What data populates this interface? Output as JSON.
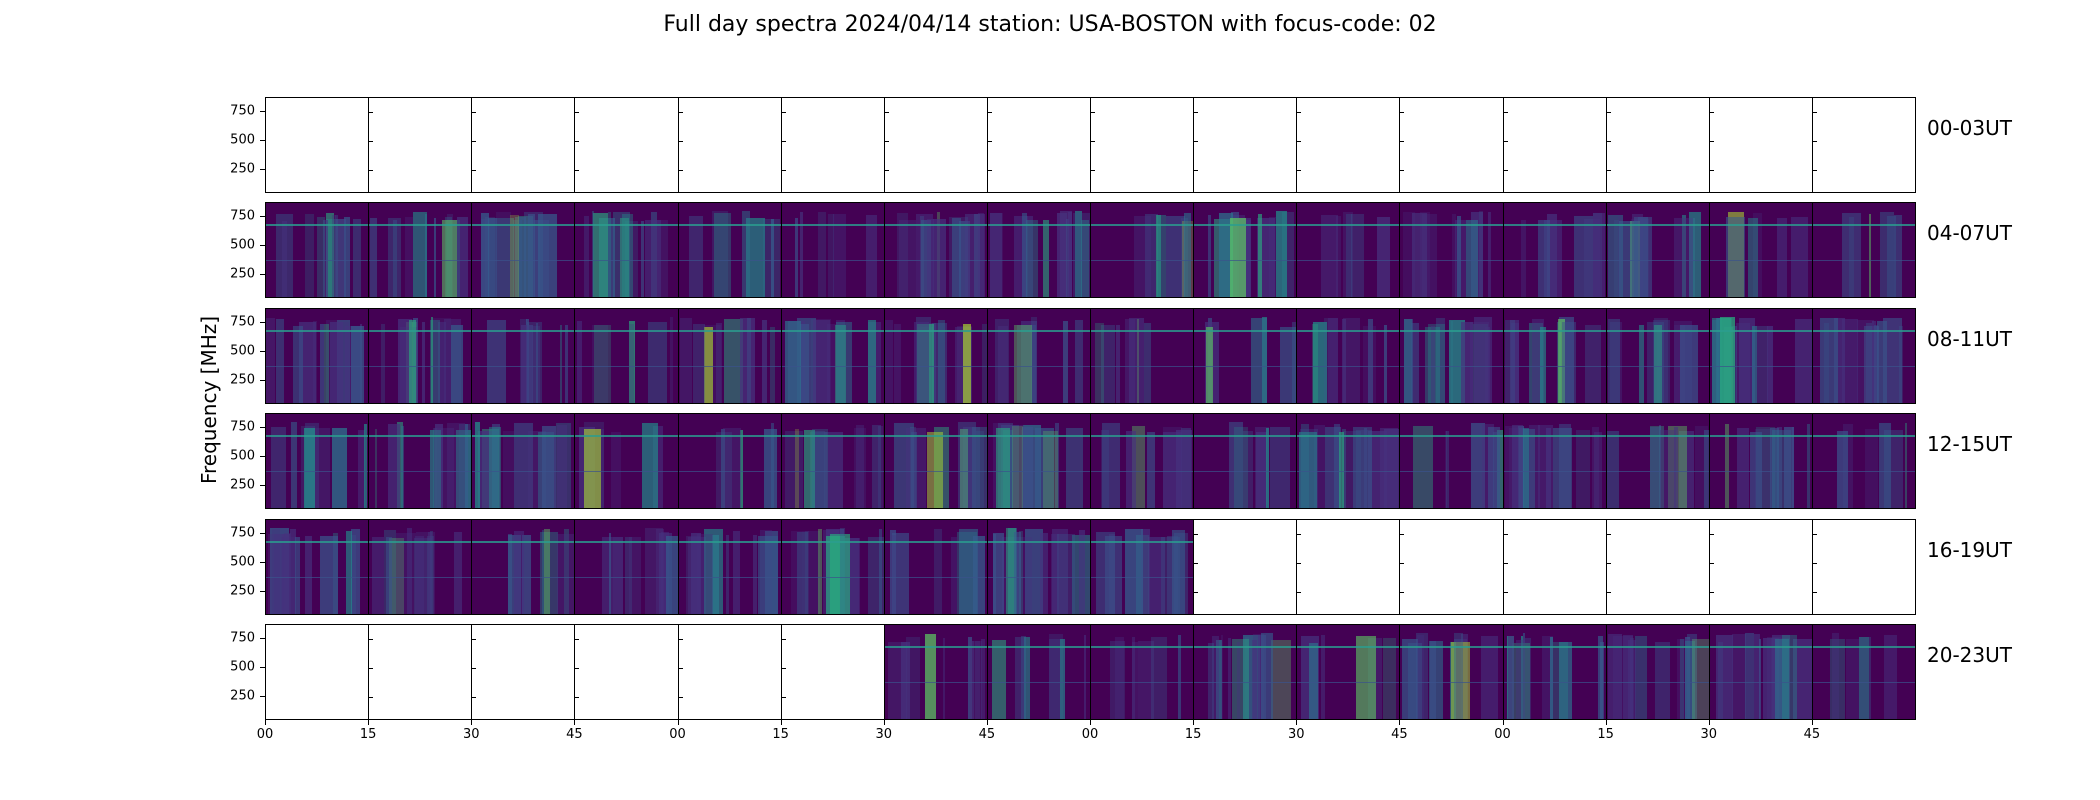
{
  "chart_data": {
    "type": "heatmap",
    "title": "Full day spectra 2024/04/14 station: USA-BOSTON with focus-code: 02",
    "ylabel": "Frequency [MHz]",
    "xlabel": "",
    "y_ticks": [
      "750",
      "500",
      "250"
    ],
    "y_tick_values": [
      750,
      500,
      250
    ],
    "ylim": [
      45,
      870
    ],
    "x_ticks": [
      "00",
      "15",
      "30",
      "45",
      "00",
      "15",
      "30",
      "45",
      "00",
      "15",
      "30",
      "45",
      "00",
      "15",
      "30",
      "45"
    ],
    "colormap": "viridis",
    "columns_per_row": 16,
    "rows": [
      {
        "label": "00-03UT",
        "data_panels": []
      },
      {
        "label": "04-07UT",
        "data_panels": [
          0,
          1,
          2,
          3,
          4,
          5,
          6,
          7,
          8,
          9,
          10,
          11,
          12,
          13,
          14,
          15
        ]
      },
      {
        "label": "08-11UT",
        "data_panels": [
          0,
          1,
          2,
          3,
          4,
          5,
          6,
          7,
          8,
          9,
          10,
          11,
          12,
          13,
          14,
          15
        ]
      },
      {
        "label": "12-15UT",
        "data_panels": [
          0,
          1,
          2,
          3,
          4,
          5,
          6,
          7,
          8,
          9,
          10,
          11,
          12,
          13,
          14,
          15
        ]
      },
      {
        "label": "16-19UT",
        "data_panels": [
          0,
          1,
          2,
          3,
          4,
          5,
          6,
          7,
          8
        ]
      },
      {
        "label": "20-23UT",
        "data_panels": [
          6,
          7,
          8,
          9,
          10,
          11,
          12,
          13,
          14,
          15
        ]
      }
    ],
    "grid": false
  }
}
